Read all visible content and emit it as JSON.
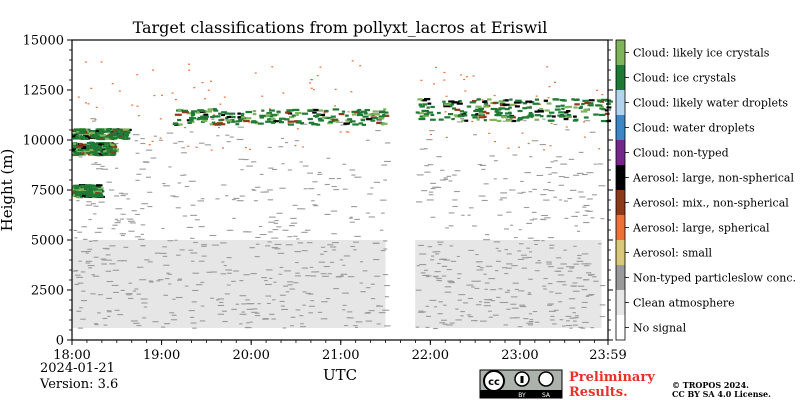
{
  "chart_data": {
    "type": "heatmap",
    "title": "Target classifications from pollyxt_lacros at Eriswil",
    "xlabel": "UTC",
    "ylabel": "Height (m)",
    "x_ticks": [
      "18:00",
      "19:00",
      "20:00",
      "21:00",
      "22:00",
      "23:00",
      "23:59"
    ],
    "x_tick_hours": [
      18,
      19,
      20,
      21,
      22,
      23,
      23.983
    ],
    "xlim": [
      18,
      23.983
    ],
    "y_ticks": [
      0,
      2500,
      5000,
      7500,
      10000,
      12500,
      15000
    ],
    "ylim": [
      0,
      15000
    ],
    "data_gap_hours": [
      21.5,
      21.83
    ],
    "colorbar": [
      {
        "label": "Cloud: likely ice crystals",
        "color": "#7fb55a"
      },
      {
        "label": "Cloud: ice crystals",
        "color": "#1e7a34"
      },
      {
        "label": "Cloud: likely water droplets",
        "color": "#b3d4ee"
      },
      {
        "label": "Cloud: water droplets",
        "color": "#3d87c6"
      },
      {
        "label": "Cloud: non-typed",
        "color": "#74288c"
      },
      {
        "label": "Aerosol: large, non-spherical",
        "color": "#000000"
      },
      {
        "label": "Aerosol: mix., non-spherical",
        "color": "#8c3a17"
      },
      {
        "label": "Aerosol: large, spherical",
        "color": "#ed7038"
      },
      {
        "label": "Aerosol: small",
        "color": "#d9c77a"
      },
      {
        "label": "Non-typed particleslow conc.",
        "color": "#9a9a9a"
      },
      {
        "label": "Clean atmosphere",
        "color": "#e6e6e6"
      },
      {
        "label": "No signal",
        "color": "#ffffff"
      }
    ]
  },
  "footer": {
    "date": "2024-01-21",
    "version": "Version: 3.6",
    "preliminary_1": "Preliminary",
    "preliminary_2": "Results.",
    "copyright_1": "© TROPOS 2024.",
    "copyright_2": "CC BY SA 4.0 License.",
    "license_badge_by": "BY",
    "license_badge_sa": "SA",
    "license_badge_cc": "cc"
  }
}
